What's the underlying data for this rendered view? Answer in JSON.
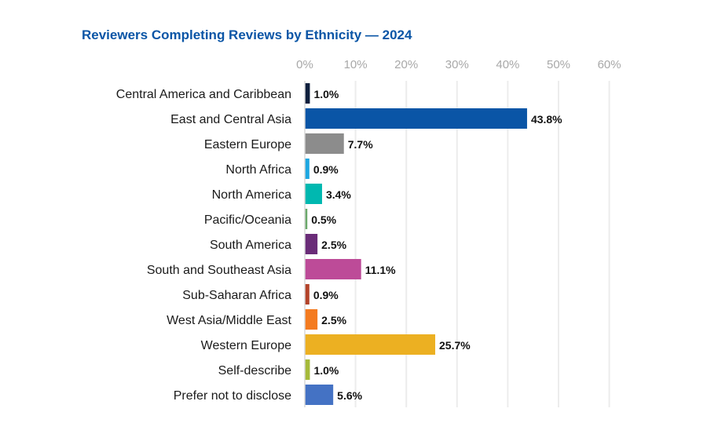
{
  "chart_data": {
    "type": "bar",
    "orientation": "horizontal",
    "title": "Reviewers Completing Reviews by Ethnicity — 2024",
    "xlabel": "",
    "ylabel": "",
    "xlim": [
      0,
      60
    ],
    "xticks": [
      "0%",
      "10%",
      "20%",
      "30%",
      "40%",
      "50%",
      "60%"
    ],
    "grid": true,
    "categories": [
      "Central America and Caribbean",
      "East and Central Asia",
      "Eastern Europe",
      "North Africa",
      "North America",
      "Pacific/Oceania",
      "South America",
      "South and Southeast Asia",
      "Sub-Saharan Africa",
      "West Asia/Middle East",
      "Western Europe",
      "Self-describe",
      "Prefer not to disclose"
    ],
    "values": [
      1.0,
      43.8,
      7.7,
      0.9,
      3.4,
      0.5,
      2.5,
      11.1,
      0.9,
      2.5,
      25.7,
      1.0,
      5.6
    ],
    "labels": [
      "1.0%",
      "43.8%",
      "7.7%",
      "0.9%",
      "3.4%",
      "0.5%",
      "2.5%",
      "11.1%",
      "0.9%",
      "2.5%",
      "25.7%",
      "1.0%",
      "5.6%"
    ],
    "colors": [
      "#0f1f3d",
      "#0a55a6",
      "#8c8c8c",
      "#1ea7e1",
      "#00b8b0",
      "#6aa86a",
      "#6a2c78",
      "#bd4b98",
      "#b3432a",
      "#f47b20",
      "#ecb022",
      "#a5ba3a",
      "#4472c4"
    ]
  }
}
